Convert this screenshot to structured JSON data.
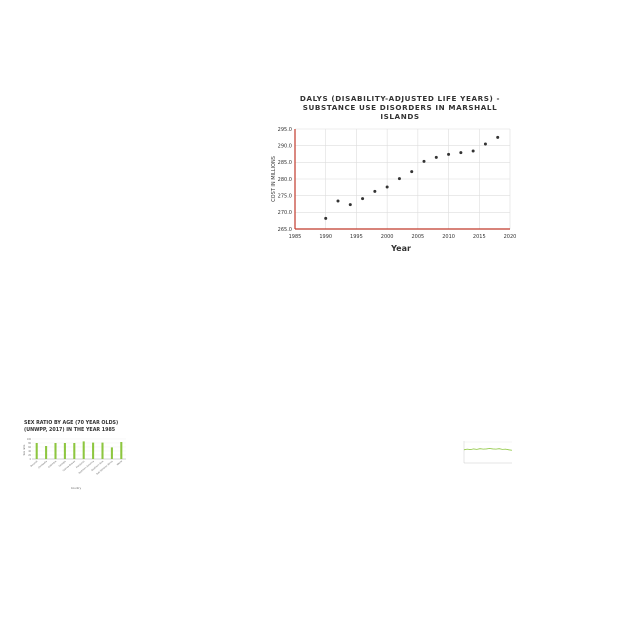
{
  "chart_data": [
    {
      "type": "scatter",
      "title_lines": [
        "DALYS (DISABILITY-ADJUSTED LIFE YEARS) -",
        "SUBSTANCE USE DISORDERS IN MARSHALL",
        "ISLANDS"
      ],
      "xlabel": "Year",
      "ylabel": "COST IN MILLIONS",
      "xlim": [
        1985,
        2020
      ],
      "ylim": [
        265,
        295
      ],
      "xticks": [
        1985,
        1990,
        1995,
        2000,
        2005,
        2010,
        2015,
        2020
      ],
      "yticks": [
        "265.0",
        "270.0",
        "275.0",
        "280.0",
        "285.0",
        "290.0",
        "295.0"
      ],
      "x": [
        1990,
        1992,
        1994,
        1996,
        1998,
        2000,
        2002,
        2004,
        2006,
        2008,
        2010,
        2012,
        2014,
        2016,
        2018
      ],
      "y": [
        268.2,
        273.4,
        272.3,
        274.1,
        276.3,
        277.6,
        280.1,
        282.2,
        285.3,
        286.5,
        287.4,
        287.9,
        288.4,
        290.5,
        292.5
      ],
      "grid": true,
      "colors": {
        "point": "#333333",
        "axis": "#c0392b",
        "grid": "#dddddd"
      }
    },
    {
      "type": "bar",
      "title_lines": [
        "SEX RATIO BY AGE (70 YEAR OLDS)",
        "(UNWPP, 2017) IN THE YEAR 1985"
      ],
      "xlabel": "Country",
      "ylabel": "Sex ratio",
      "ylim": [
        0,
        100
      ],
      "yticks": [
        "100",
        "80",
        "60",
        "40",
        "20",
        "0"
      ],
      "categories": [
        "Burundi",
        "Cambodia",
        "Colombia",
        "Georgia",
        "Guinea-Bissau",
        "Honduras",
        "Northern America",
        "Southern Asia",
        "Sub-Saharan Africa",
        "World"
      ],
      "values": [
        80,
        65,
        80,
        80,
        80,
        88,
        82,
        82,
        58,
        85
      ],
      "grid": true,
      "colors": {
        "bar": "#8dc63f",
        "axis": "#999999"
      }
    },
    {
      "type": "line",
      "x": [
        0,
        1,
        2,
        3,
        4,
        5,
        6,
        7,
        8,
        9,
        10,
        11,
        12,
        13,
        14,
        15
      ],
      "y": [
        60,
        63,
        61,
        64,
        62,
        65,
        63,
        64,
        66,
        64,
        63,
        65,
        62,
        63,
        60,
        58
      ],
      "ylim": [
        0,
        100
      ],
      "colors": {
        "line": "#8dc63f",
        "axis": "#aaaaaa"
      }
    }
  ]
}
